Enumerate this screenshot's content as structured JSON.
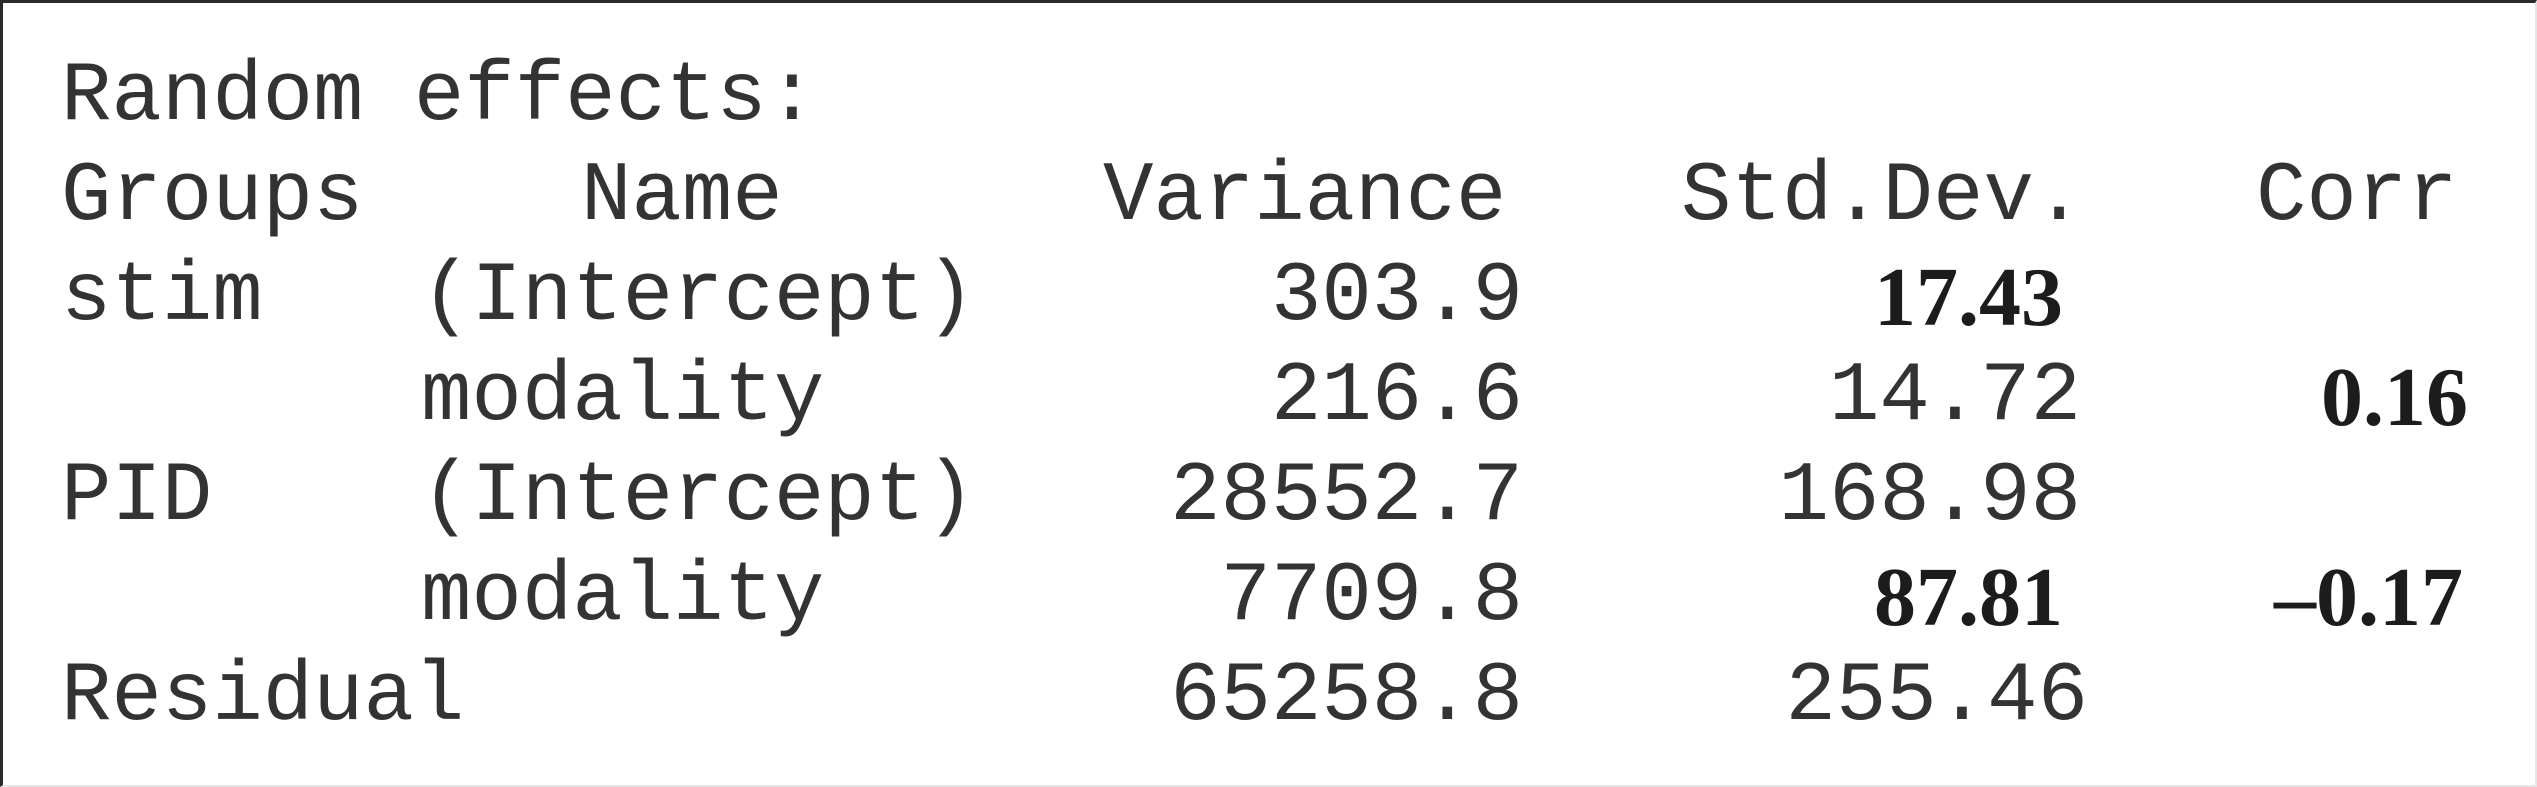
{
  "title": "Random effects:",
  "headers": {
    "groups": "Groups",
    "name": "Name",
    "variance": "Variance",
    "stddev": "Std.Dev.",
    "corr": "Corr"
  },
  "rows": [
    {
      "group": "stim",
      "name": "(Intercept)",
      "variance": "303.9",
      "stddev": "17.43",
      "corr": ""
    },
    {
      "group": "",
      "name": "modality",
      "variance": "216.6",
      "stddev": "14.72",
      "corr": "0.16"
    },
    {
      "group": "PID",
      "name": "(Intercept)",
      "variance": "28552.7",
      "stddev": "168.98",
      "corr": ""
    },
    {
      "group": "",
      "name": "modality",
      "variance": "7709.8",
      "stddev": "87.81",
      "corr": "–0.17"
    },
    {
      "group": "Residual",
      "name": "",
      "variance": "65258.8",
      "stddev": "255.46",
      "corr": ""
    }
  ]
}
